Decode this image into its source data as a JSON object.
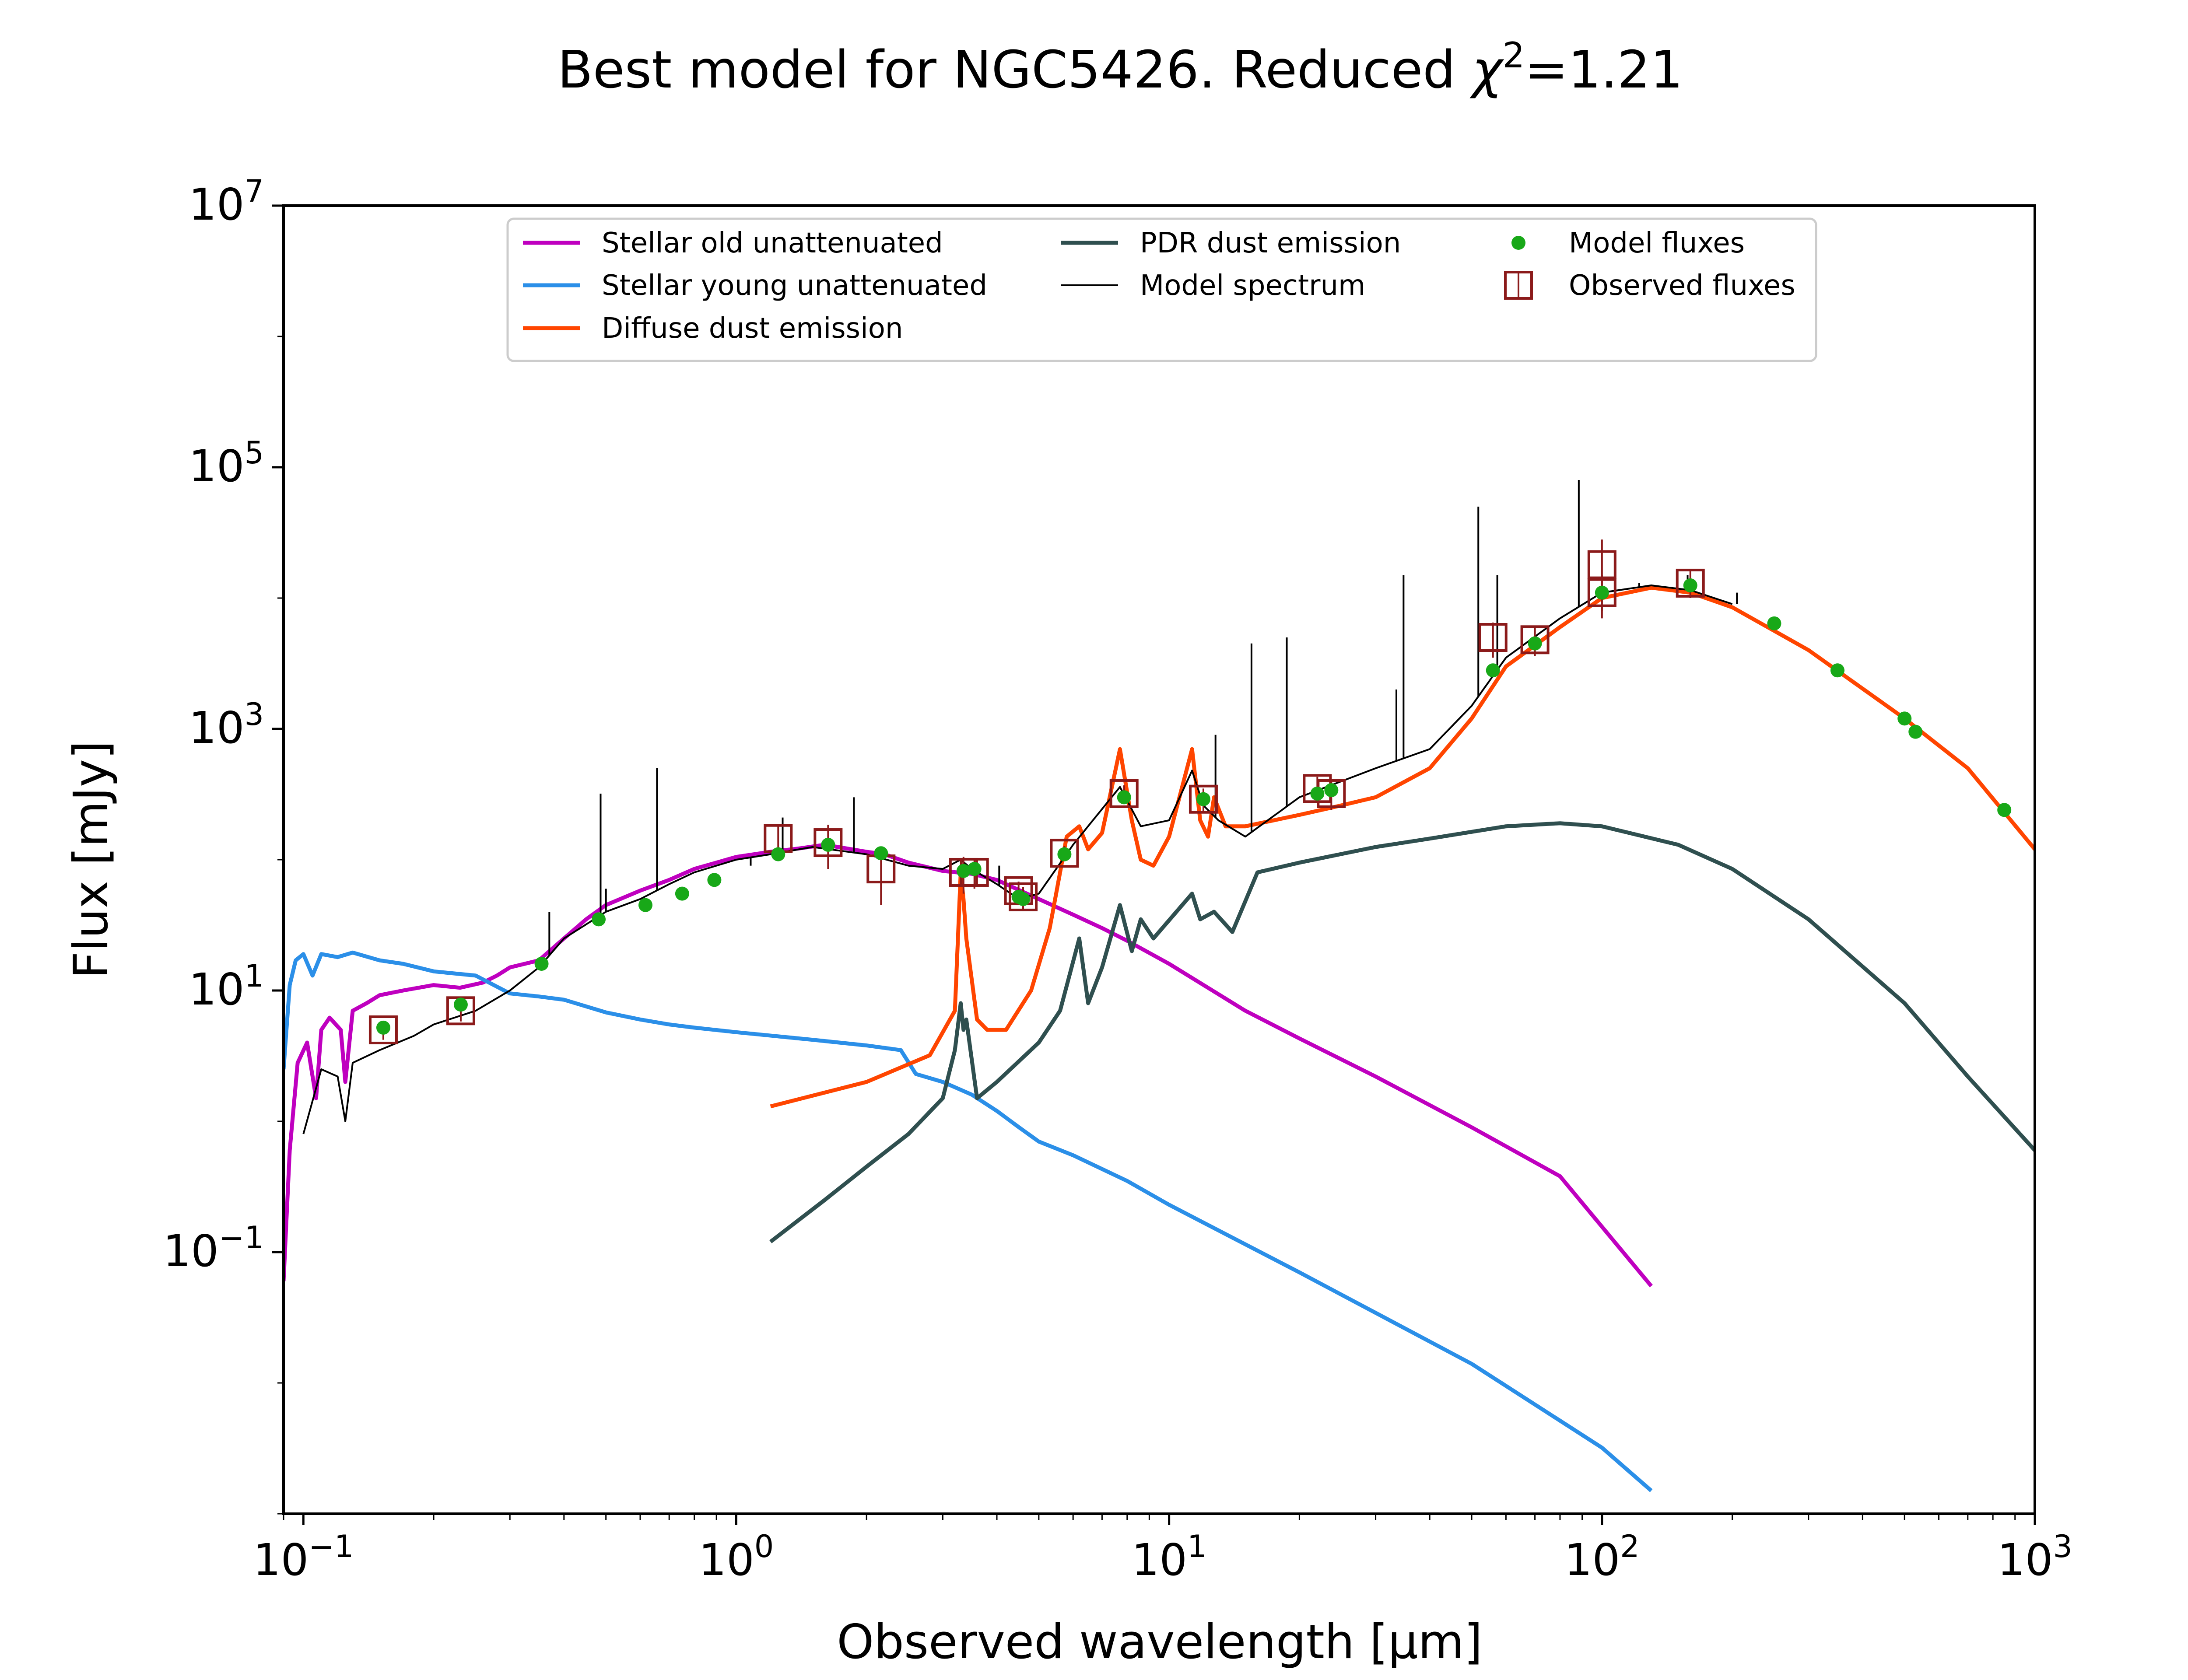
{
  "chart_data": {
    "type": "line",
    "title_prefix": "Best model for NGC5426. Reduced ",
    "title_symbol": "χ",
    "title_exponent": "2",
    "title_suffix": "=1.21",
    "xlabel": "Observed wavelength [μm]",
    "ylabel": "Flux [mJy]",
    "x_scale": "log",
    "y_scale": "log",
    "xlim": [
      0.09,
      1000
    ],
    "ylim": [
      0.001,
      10000000
    ],
    "grid": false,
    "legend_placement": "top-center",
    "x_ticks": [
      {
        "value": 0.1,
        "base": "10",
        "exp": "−1"
      },
      {
        "value": 1,
        "base": "10",
        "exp": "0"
      },
      {
        "value": 10,
        "base": "10",
        "exp": "1"
      },
      {
        "value": 100,
        "base": "10",
        "exp": "2"
      },
      {
        "value": 1000,
        "base": "10",
        "exp": "3"
      }
    ],
    "y_ticks": [
      {
        "value": 0.1,
        "base": "10",
        "exp": "−1"
      },
      {
        "value": 10,
        "base": "10",
        "exp": "1"
      },
      {
        "value": 1000,
        "base": "10",
        "exp": "3"
      },
      {
        "value": 100000,
        "base": "10",
        "exp": "5"
      },
      {
        "value": 10000000,
        "base": "10",
        "exp": "7"
      }
    ],
    "series": [
      {
        "name": "Stellar old unattenuated",
        "color": "#bf00bf",
        "points": [
          [
            0.09,
            0.06
          ],
          [
            0.093,
            0.6
          ],
          [
            0.097,
            2.8
          ],
          [
            0.102,
            4
          ],
          [
            0.107,
            1.5
          ],
          [
            0.11,
            5
          ],
          [
            0.115,
            6.2
          ],
          [
            0.122,
            5
          ],
          [
            0.125,
            2
          ],
          [
            0.13,
            7
          ],
          [
            0.14,
            8
          ],
          [
            0.15,
            9.2
          ],
          [
            0.17,
            10
          ],
          [
            0.2,
            11
          ],
          [
            0.23,
            10.5
          ],
          [
            0.26,
            11.5
          ],
          [
            0.28,
            13
          ],
          [
            0.3,
            15
          ],
          [
            0.35,
            17
          ],
          [
            0.4,
            25
          ],
          [
            0.45,
            35
          ],
          [
            0.5,
            45
          ],
          [
            0.6,
            58
          ],
          [
            0.7,
            70
          ],
          [
            0.8,
            85
          ],
          [
            0.9,
            95
          ],
          [
            1.0,
            105
          ],
          [
            1.2,
            115
          ],
          [
            1.4,
            122
          ],
          [
            1.6,
            130
          ],
          [
            2.0,
            115
          ],
          [
            2.2,
            110
          ],
          [
            2.5,
            95
          ],
          [
            3.0,
            82
          ],
          [
            3.5,
            78
          ],
          [
            4.0,
            70
          ],
          [
            5.0,
            50
          ],
          [
            6.0,
            38
          ],
          [
            7.0,
            30
          ],
          [
            8.0,
            24
          ],
          [
            10.0,
            16
          ],
          [
            15.0,
            7
          ],
          [
            20.0,
            4.3
          ],
          [
            30.0,
            2.2
          ],
          [
            50.0,
            0.9
          ],
          [
            80.0,
            0.38
          ],
          [
            130.0,
            0.055
          ]
        ]
      },
      {
        "name": "Stellar young unattenuated",
        "color": "#2b8fe8",
        "points": [
          [
            0.09,
            2.5
          ],
          [
            0.093,
            11
          ],
          [
            0.096,
            17
          ],
          [
            0.1,
            19
          ],
          [
            0.105,
            13
          ],
          [
            0.11,
            19
          ],
          [
            0.12,
            18
          ],
          [
            0.13,
            19.5
          ],
          [
            0.15,
            17
          ],
          [
            0.17,
            16
          ],
          [
            0.2,
            14
          ],
          [
            0.25,
            13
          ],
          [
            0.3,
            9.5
          ],
          [
            0.35,
            9
          ],
          [
            0.4,
            8.5
          ],
          [
            0.5,
            6.8
          ],
          [
            0.6,
            6
          ],
          [
            0.7,
            5.5
          ],
          [
            0.8,
            5.2
          ],
          [
            1.0,
            4.8
          ],
          [
            1.5,
            4.2
          ],
          [
            2.0,
            3.8
          ],
          [
            2.4,
            3.5
          ],
          [
            2.6,
            2.3
          ],
          [
            3.0,
            2.0
          ],
          [
            3.5,
            1.6
          ],
          [
            4.0,
            1.2
          ],
          [
            4.5,
            0.9
          ],
          [
            5.0,
            0.7
          ],
          [
            6.0,
            0.55
          ],
          [
            8.0,
            0.35
          ],
          [
            10.0,
            0.23
          ],
          [
            20.0,
            0.07
          ],
          [
            50.0,
            0.014
          ],
          [
            100.0,
            0.0032
          ],
          [
            130.0,
            0.0015
          ]
        ]
      },
      {
        "name": "Diffuse dust emission",
        "color": "#ff4500",
        "points": [
          [
            1.2,
            1.3
          ],
          [
            2.0,
            2.0
          ],
          [
            2.8,
            3.2
          ],
          [
            3.2,
            7
          ],
          [
            3.3,
            80
          ],
          [
            3.35,
            50
          ],
          [
            3.4,
            25
          ],
          [
            3.6,
            6
          ],
          [
            3.8,
            5
          ],
          [
            4.2,
            5
          ],
          [
            4.8,
            10
          ],
          [
            5.3,
            30
          ],
          [
            5.8,
            150
          ],
          [
            6.2,
            180
          ],
          [
            6.5,
            120
          ],
          [
            7.0,
            160
          ],
          [
            7.7,
            700
          ],
          [
            8.2,
            200
          ],
          [
            8.6,
            100
          ],
          [
            9.2,
            90
          ],
          [
            10.0,
            150
          ],
          [
            11.3,
            700
          ],
          [
            11.8,
            200
          ],
          [
            12.3,
            150
          ],
          [
            12.7,
            300
          ],
          [
            13.5,
            180
          ],
          [
            15.0,
            180
          ],
          [
            20.0,
            220
          ],
          [
            25.0,
            260
          ],
          [
            30.0,
            300
          ],
          [
            40.0,
            500
          ],
          [
            50.0,
            1200
          ],
          [
            60.0,
            3000
          ],
          [
            80.0,
            6000
          ],
          [
            100.0,
            10000
          ],
          [
            130.0,
            12000
          ],
          [
            160.0,
            11000
          ],
          [
            200.0,
            8500
          ],
          [
            300.0,
            4000
          ],
          [
            500.0,
            1200
          ],
          [
            700.0,
            500
          ],
          [
            1000.0,
            120
          ]
        ]
      },
      {
        "name": "PDR dust emission",
        "color": "#2f4f4f",
        "points": [
          [
            1.2,
            0.12
          ],
          [
            1.6,
            0.25
          ],
          [
            2.0,
            0.45
          ],
          [
            2.5,
            0.8
          ],
          [
            3.0,
            1.5
          ],
          [
            3.2,
            3.5
          ],
          [
            3.3,
            8
          ],
          [
            3.35,
            5
          ],
          [
            3.4,
            6
          ],
          [
            3.6,
            1.5
          ],
          [
            4.0,
            2
          ],
          [
            5.0,
            4
          ],
          [
            5.6,
            7
          ],
          [
            6.2,
            25
          ],
          [
            6.5,
            8
          ],
          [
            7.0,
            15
          ],
          [
            7.7,
            45
          ],
          [
            8.2,
            20
          ],
          [
            8.6,
            35
          ],
          [
            9.2,
            25
          ],
          [
            11.3,
            55
          ],
          [
            11.8,
            35
          ],
          [
            12.7,
            40
          ],
          [
            14.0,
            28
          ],
          [
            16.0,
            80
          ],
          [
            20.0,
            95
          ],
          [
            30.0,
            125
          ],
          [
            40.0,
            145
          ],
          [
            60.0,
            180
          ],
          [
            80.0,
            190
          ],
          [
            100.0,
            180
          ],
          [
            150.0,
            130
          ],
          [
            200.0,
            85
          ],
          [
            300.0,
            35
          ],
          [
            500.0,
            8
          ],
          [
            700.0,
            2.2
          ],
          [
            1000.0,
            0.6
          ]
        ]
      },
      {
        "name": "Model spectrum",
        "color": "#000000",
        "points": [
          [
            0.1,
            0.8
          ],
          [
            0.11,
            2.5
          ],
          [
            0.12,
            2.2
          ],
          [
            0.125,
            1.0
          ],
          [
            0.13,
            2.8
          ],
          [
            0.15,
            3.5
          ],
          [
            0.18,
            4.5
          ],
          [
            0.2,
            5.5
          ],
          [
            0.25,
            7
          ],
          [
            0.3,
            10
          ],
          [
            0.35,
            15
          ],
          [
            0.4,
            25
          ],
          [
            0.5,
            40
          ],
          [
            0.6,
            50
          ],
          [
            0.7,
            65
          ],
          [
            0.8,
            80
          ],
          [
            1.0,
            100
          ],
          [
            1.2,
            110
          ],
          [
            1.5,
            125
          ],
          [
            2.0,
            110
          ],
          [
            2.5,
            90
          ],
          [
            3.0,
            85
          ],
          [
            3.3,
            100
          ],
          [
            3.5,
            85
          ],
          [
            4.0,
            65
          ],
          [
            4.5,
            50
          ],
          [
            5.0,
            55
          ],
          [
            6.0,
            130
          ],
          [
            7.7,
            360
          ],
          [
            8.6,
            180
          ],
          [
            10.0,
            200
          ],
          [
            11.3,
            480
          ],
          [
            12.0,
            260
          ],
          [
            13.0,
            200
          ],
          [
            15.0,
            150
          ],
          [
            20.0,
            300
          ],
          [
            30.0,
            500
          ],
          [
            40.0,
            700
          ],
          [
            50.0,
            1500
          ],
          [
            60.0,
            3500
          ],
          [
            80.0,
            7000
          ],
          [
            100.0,
            11000
          ],
          [
            130.0,
            12500
          ],
          [
            160.0,
            11500
          ],
          [
            200.0,
            9000
          ]
        ]
      }
    ],
    "emission_lines": [
      {
        "x": 0.37,
        "peak": 40
      },
      {
        "x": 0.486,
        "peak": 320
      },
      {
        "x": 0.5,
        "peak": 60
      },
      {
        "x": 0.656,
        "peak": 500
      },
      {
        "x": 1.08,
        "peak": 90
      },
      {
        "x": 1.28,
        "peak": 210
      },
      {
        "x": 1.87,
        "peak": 300
      },
      {
        "x": 4.05,
        "peak": 90
      },
      {
        "x": 12.8,
        "peak": 900
      },
      {
        "x": 15.5,
        "peak": 4500
      },
      {
        "x": 18.7,
        "peak": 5000
      },
      {
        "x": 33.5,
        "peak": 2000
      },
      {
        "x": 34.8,
        "peak": 15000
      },
      {
        "x": 51.8,
        "peak": 50000
      },
      {
        "x": 57.3,
        "peak": 15000
      },
      {
        "x": 88.4,
        "peak": 80000
      },
      {
        "x": 121.9,
        "peak": 13000
      },
      {
        "x": 157.7,
        "peak": 15000
      },
      {
        "x": 205.0,
        "peak": 11000
      }
    ],
    "model_fluxes": {
      "name": "Model fluxes",
      "color": "#18a818",
      "points": [
        [
          0.153,
          5.2
        ],
        [
          0.231,
          7.8
        ],
        [
          0.355,
          16
        ],
        [
          0.481,
          35
        ],
        [
          0.617,
          45
        ],
        [
          0.75,
          55
        ],
        [
          0.89,
          70
        ],
        [
          1.25,
          110
        ],
        [
          1.63,
          130
        ],
        [
          2.16,
          112
        ],
        [
          3.35,
          82
        ],
        [
          3.55,
          85
        ],
        [
          4.49,
          52
        ],
        [
          4.6,
          50
        ],
        [
          5.73,
          110
        ],
        [
          7.87,
          300
        ],
        [
          12.0,
          290
        ],
        [
          22.0,
          320
        ],
        [
          23.7,
          340
        ],
        [
          56.0,
          2800
        ],
        [
          70.0,
          4500
        ],
        [
          100.0,
          11000
        ],
        [
          160.0,
          12500
        ],
        [
          250.0,
          6400
        ],
        [
          350.0,
          2800
        ],
        [
          500.0,
          1200
        ],
        [
          530.0,
          950
        ],
        [
          850.0,
          240
        ]
      ]
    },
    "observed_fluxes": {
      "name": "Observed fluxes",
      "color": "#8b1a1a",
      "points": [
        [
          0.153,
          5.0,
          0.8
        ],
        [
          0.231,
          7.0,
          1.2
        ],
        [
          1.25,
          145,
          40
        ],
        [
          1.63,
          135,
          50
        ],
        [
          2.16,
          85,
          40
        ],
        [
          3.35,
          80,
          25
        ],
        [
          3.55,
          80,
          20
        ],
        [
          4.49,
          58,
          10
        ],
        [
          4.6,
          52,
          10
        ],
        [
          5.73,
          112,
          15
        ],
        [
          7.87,
          320,
          50
        ],
        [
          12.0,
          290,
          60
        ],
        [
          22.0,
          350,
          80
        ],
        [
          23.7,
          320,
          80
        ],
        [
          56.0,
          5000,
          1500
        ],
        [
          70.0,
          4800,
          1200
        ],
        [
          100.0,
          18000,
          10000
        ],
        [
          100.0,
          11000,
          4000
        ],
        [
          160.0,
          13000,
          3000
        ]
      ]
    }
  }
}
